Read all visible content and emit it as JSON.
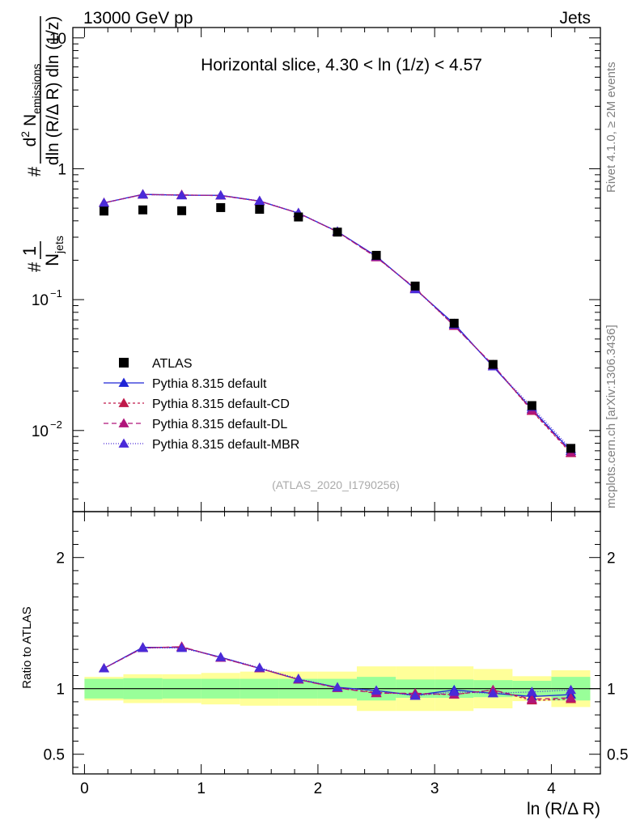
{
  "header": {
    "left": "13000 GeV pp",
    "right": "Jets"
  },
  "side_labels": {
    "top": "Rivet 4.1.0, ≥ 2M events",
    "bottom": "mcplots.cern.ch [arXiv:1306.3436]"
  },
  "chart_data": {
    "type": "scatter",
    "title": "Horizontal slice, 4.30 < ln (1/z) < 4.57",
    "watermark": "(ATLAS_2020_I1790256)",
    "xlabel": "ln (R/Δ R)",
    "ylabel_main": "1/N_jets d² N_emissions / dln (R/Δ R) dln (1/z)",
    "ylabel_ratio": "Ratio to ATLAS",
    "main_yscale": "log",
    "main_ylim": [
      0.0024,
      12
    ],
    "ratio_ylim": [
      0.35,
      2.35
    ],
    "xlim": [
      -0.1,
      4.42
    ],
    "x_ticks": [
      0,
      1,
      2,
      3,
      4
    ],
    "x_tick_labels": [
      "0",
      "1",
      "2",
      "3",
      "4"
    ],
    "main_tick_labels": [
      {
        "value": 10,
        "mant": "10",
        "exp": ""
      },
      {
        "value": 1,
        "mant": "1",
        "exp": ""
      },
      {
        "value": 0.1,
        "mant": "10",
        "exp": "−1"
      },
      {
        "value": 0.01,
        "mant": "10",
        "exp": "−2"
      }
    ],
    "ratio_ticks": [
      0.5,
      1,
      2
    ],
    "ratio_tick_labels": [
      "0.5",
      "1",
      "2"
    ],
    "bin_edges": [
      0,
      0.333,
      0.667,
      1.0,
      1.333,
      1.667,
      2.0,
      2.333,
      2.667,
      3.0,
      3.333,
      3.667,
      4.0,
      4.333
    ],
    "x": [
      0.167,
      0.5,
      0.833,
      1.167,
      1.5,
      1.833,
      2.167,
      2.5,
      2.833,
      3.167,
      3.5,
      3.833,
      4.167
    ],
    "data": {
      "name": "ATLAS",
      "values": [
        0.475,
        0.485,
        0.478,
        0.505,
        0.49,
        0.428,
        0.328,
        0.218,
        0.127,
        0.066,
        0.032,
        0.0155,
        0.0073
      ],
      "stat_band": [
        0.075,
        0.08,
        0.075,
        0.075,
        0.075,
        0.075,
        0.075,
        0.09,
        0.07,
        0.07,
        0.065,
        0.06,
        0.09
      ],
      "total_band": [
        0.09,
        0.11,
        0.11,
        0.12,
        0.13,
        0.13,
        0.13,
        0.17,
        0.17,
        0.17,
        0.15,
        0.095,
        0.14
      ]
    },
    "series": [
      {
        "name": "Pythia 8.315 default",
        "color": "#1f24d6",
        "dash": "",
        "ratios": [
          1.155,
          1.315,
          1.315,
          1.24,
          1.155,
          1.07,
          1.01,
          0.985,
          0.95,
          0.99,
          0.965,
          0.94,
          0.955
        ]
      },
      {
        "name": "Pythia 8.315 default-CD",
        "color": "#c0194a",
        "dash": "3,3",
        "ratios": [
          1.155,
          1.31,
          1.32,
          1.235,
          1.155,
          1.07,
          1.005,
          0.97,
          0.96,
          0.955,
          0.99,
          0.91,
          0.92
        ]
      },
      {
        "name": "Pythia 8.315 default-DL",
        "color": "#b0157a",
        "dash": "6,4",
        "ratios": [
          1.155,
          1.31,
          1.32,
          1.235,
          1.155,
          1.07,
          1.005,
          0.965,
          0.965,
          0.955,
          0.99,
          0.92,
          0.93
        ]
      },
      {
        "name": "Pythia 8.315 default-MBR",
        "color": "#4a2ad8",
        "dash": "1,2",
        "ratios": [
          1.155,
          1.31,
          1.31,
          1.24,
          1.16,
          1.075,
          1.01,
          0.985,
          0.945,
          0.975,
          0.965,
          0.975,
          0.99
        ]
      }
    ]
  }
}
